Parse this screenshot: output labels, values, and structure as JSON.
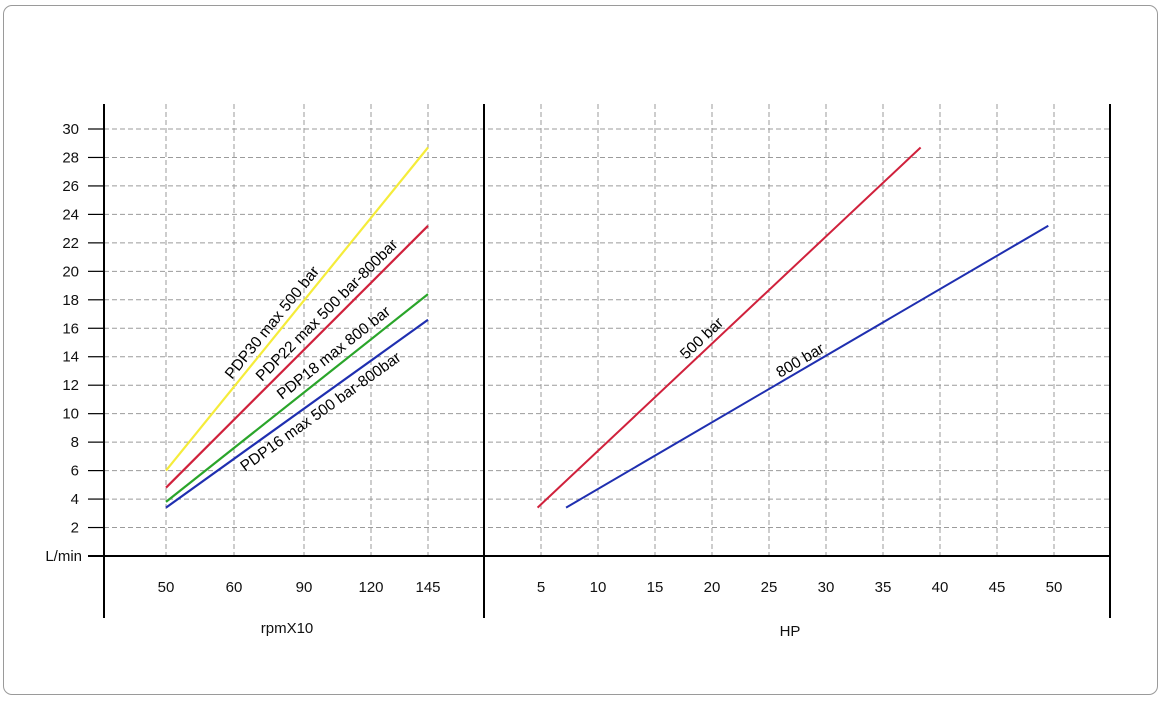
{
  "chart_data": [
    {
      "type": "line",
      "id": "flow_vs_rpm",
      "xlabel": "rpmX10",
      "ylabel": "L/min",
      "x_ticks": [
        "50",
        "60",
        "90",
        "120",
        "145"
      ],
      "y_ticks": [
        "2",
        "4",
        "6",
        "8",
        "10",
        "12",
        "14",
        "16",
        "18",
        "20",
        "22",
        "24",
        "26",
        "28",
        "30"
      ],
      "ylim": [
        0,
        30
      ],
      "grid": true,
      "series": [
        {
          "name": "PDP30  max 500 bar",
          "color": "#f5ec3a",
          "x": [
            "50",
            "145"
          ],
          "y": [
            6.0,
            28.7
          ]
        },
        {
          "name": "PDP22  max 500 bar-800bar",
          "color": "#d0213c",
          "x": [
            "50",
            "145"
          ],
          "y": [
            4.8,
            23.2
          ]
        },
        {
          "name": "PDP18  max 800 bar",
          "color": "#2aa52a",
          "x": [
            "50",
            "145"
          ],
          "y": [
            3.8,
            18.4
          ]
        },
        {
          "name": "PDP16  max 500 bar-800bar",
          "color": "#1f2fb0",
          "x": [
            "50",
            "145"
          ],
          "y": [
            3.4,
            16.6
          ]
        }
      ]
    },
    {
      "type": "line",
      "id": "flow_vs_hp",
      "xlabel": "HP",
      "ylabel": "",
      "x_ticks": [
        "5",
        "10",
        "15",
        "20",
        "25",
        "30",
        "35",
        "40",
        "45",
        "50"
      ],
      "ylim": [
        0,
        30
      ],
      "grid": true,
      "series": [
        {
          "name": "500 bar",
          "color": "#d0213c",
          "x": [
            4.7,
            38.3
          ],
          "y": [
            3.4,
            28.7
          ]
        },
        {
          "name": "800 bar",
          "color": "#1f2fb0",
          "x": [
            7.2,
            49.5
          ],
          "y": [
            3.4,
            23.2
          ]
        }
      ]
    }
  ]
}
